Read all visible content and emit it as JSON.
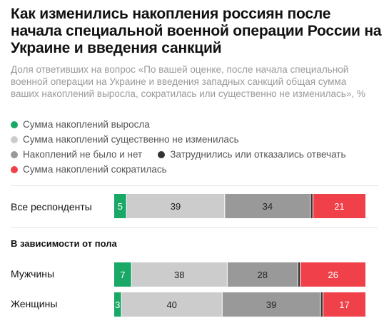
{
  "title": "Как изменились накопления россиян после начала специальной военной операции России на Украине и введения санкций",
  "subtitle": "Доля ответивших на вопрос «По вашей оценке, после начала специальной военной операции на Украине и введения западных санкций общая сумма ваших накоплений выросла, сократилась или существенно не изменилась», %",
  "legend": [
    {
      "label": "Сумма накоплений выросла",
      "color": "#1aa866"
    },
    {
      "label": "Сумма накоплений существенно не изменилась",
      "color": "#cccccc"
    },
    {
      "label": "Накоплений не было и нет",
      "color": "#999999"
    },
    {
      "label": "Затруднились или отказались отвечать",
      "color": "#333333"
    },
    {
      "label": "Сумма накоплений сократилась",
      "color": "#f0414a"
    }
  ],
  "group_label": "В зависимости от пола",
  "chart_data": {
    "type": "bar",
    "orientation": "horizontal-stacked",
    "unit": "%",
    "categories": [
      "Все респонденты",
      "Мужчины",
      "Женщины"
    ],
    "series": [
      {
        "name": "Сумма накоплений выросла",
        "color": "#1aa866",
        "label_color": "#ffffff",
        "values": [
          5,
          7,
          3
        ]
      },
      {
        "name": "Сумма накоплений существенно не изменилась",
        "color": "#cccccc",
        "label_color": "#222222",
        "values": [
          39,
          38,
          40
        ]
      },
      {
        "name": "Накоплений не было и нет",
        "color": "#999999",
        "label_color": "#222222",
        "values": [
          34,
          28,
          39
        ]
      },
      {
        "name": "Затруднились или отказались отвечать",
        "color": "#333333",
        "label_color": "#ffffff",
        "values": [
          1,
          1,
          1
        ]
      },
      {
        "name": "Сумма накоплений сократилась",
        "color": "#f0414a",
        "label_color": "#ffffff",
        "values": [
          21,
          26,
          17
        ]
      }
    ],
    "show_labels": [
      true,
      true,
      true,
      false,
      true
    ],
    "xlim": [
      0,
      100
    ],
    "grid": false,
    "legend_position": "top"
  }
}
